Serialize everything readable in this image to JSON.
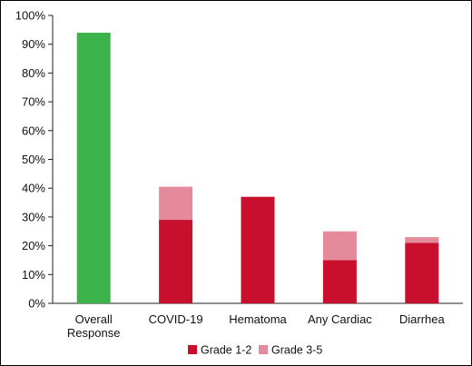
{
  "chart_data": {
    "type": "bar",
    "stacked": true,
    "categories": [
      "Overall Response",
      "COVID-19",
      "Hematoma",
      "Any Cardiac",
      "Diarrhea"
    ],
    "category_lines": [
      [
        "Overall",
        "Response"
      ],
      [
        "COVID-19"
      ],
      [
        "Hematoma"
      ],
      [
        "Any Cardiac"
      ],
      [
        "Diarrhea"
      ]
    ],
    "overall_response": {
      "category": "Overall Response",
      "value": 94,
      "color": "#3BB24A"
    },
    "series": [
      {
        "name": "Grade 1-2",
        "color": "#C8102E",
        "values": [
          null,
          29,
          37,
          15,
          21
        ]
      },
      {
        "name": "Grade 3-5",
        "color": "#E48A9A",
        "values": [
          null,
          11.5,
          0,
          10,
          2
        ]
      }
    ],
    "y_ticks": [
      "0%",
      "10%",
      "20%",
      "30%",
      "40%",
      "50%",
      "60%",
      "70%",
      "80%",
      "90%",
      "100%"
    ],
    "ylim": [
      0,
      100
    ],
    "title": "",
    "xlabel": "",
    "ylabel": "",
    "legend_position": "bottom",
    "grid": false
  }
}
